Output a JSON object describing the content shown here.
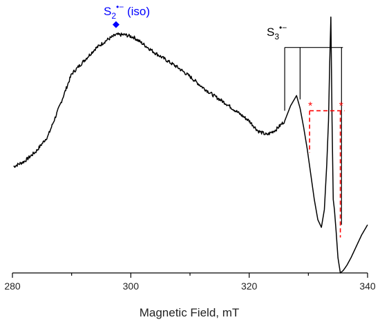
{
  "chart_data": {
    "type": "line",
    "title": "",
    "xlabel": "Magnetic Field, mT",
    "ylabel": "",
    "xlim": [
      280,
      340
    ],
    "ylim": [
      -1.1,
      1.0
    ],
    "x_ticks": [
      280,
      300,
      320,
      340
    ],
    "grid": false,
    "series": [
      {
        "color": "#000000",
        "x": [
          280.2,
          282,
          284,
          286,
          288,
          290,
          292,
          294,
          296,
          297.5,
          299,
          300.5,
          302,
          304,
          306,
          308,
          310,
          312,
          314,
          316,
          318,
          320,
          321.5,
          323,
          324.5,
          326,
          327,
          328,
          328.6,
          329.2,
          329.8,
          330.4,
          331,
          331.6,
          332.2,
          332.7,
          333.1,
          333.4,
          333.6,
          333.8,
          334.0,
          334.2,
          334.4,
          334.7,
          335.0,
          335.4,
          335.9,
          336.5,
          337.2,
          338,
          339,
          340
        ],
        "y": [
          -0.26,
          -0.22,
          -0.14,
          -0.02,
          0.22,
          0.47,
          0.57,
          0.67,
          0.74,
          0.78,
          0.78,
          0.76,
          0.71,
          0.64,
          0.58,
          0.52,
          0.45,
          0.37,
          0.3,
          0.24,
          0.17,
          0.1,
          0.02,
          -0.01,
          0.03,
          0.1,
          0.22,
          0.3,
          0.2,
          0.05,
          -0.12,
          -0.32,
          -0.52,
          -0.68,
          -0.74,
          -0.6,
          -0.25,
          0.1,
          0.55,
          0.92,
          0.1,
          -0.52,
          -0.6,
          -0.78,
          -0.98,
          -1.1,
          -1.08,
          -1.04,
          -0.98,
          -0.9,
          -0.8,
          -0.72
        ]
      }
    ],
    "annotations": {
      "s2_label": {
        "base": "S",
        "sub": "2",
        "sup": "•−",
        "suffix": " (iso)",
        "color": "#0000ff",
        "marker_x": 297.5,
        "marker_y": 0.86
      },
      "s3_label": {
        "base": "S",
        "sub": "3",
        "sup": "•−",
        "color": "#000000",
        "lines_x": [
          326,
          328.6,
          333.8,
          335.6
        ],
        "top_y": 0.68
      },
      "red_markers": {
        "symbol": "*",
        "color": "#ff0000",
        "x": [
          330.2,
          335.4
        ],
        "top_y": 0.18,
        "bottom_y": [
          -0.15,
          -0.82
        ]
      }
    }
  }
}
